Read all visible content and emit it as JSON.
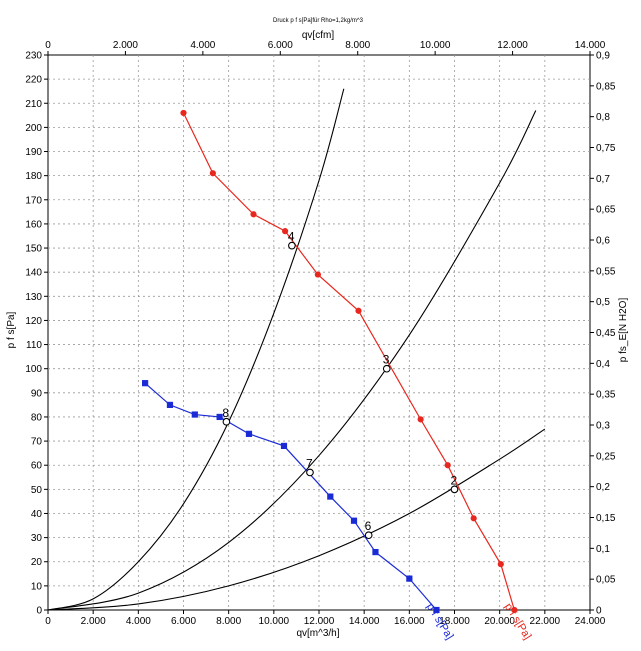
{
  "chart_data": {
    "type": "line",
    "title": "Druck p f s[Pa]für Rho=1,2kg/m^3",
    "xlabel": "qv[m^3/h]",
    "x2label": "qv[cfm]",
    "ylabel": "p f s[Pa]",
    "y2label": "p fs_E[N H2O]",
    "xlim": [
      0,
      24000
    ],
    "x2lim": [
      0,
      14000
    ],
    "ylim": [
      0,
      230
    ],
    "y2lim": [
      0,
      0.9
    ],
    "xticks": [
      "0",
      "2.000",
      "4.000",
      "6.000",
      "8.000",
      "10.000",
      "12.000",
      "14.000",
      "16.000",
      "18.000",
      "20.000",
      "22.000",
      "24.000"
    ],
    "x2ticks": [
      "0",
      "2.000",
      "4.000",
      "6.000",
      "8.000",
      "10.000",
      "12.000",
      "14.000"
    ],
    "yticks": [
      "0",
      "10",
      "20",
      "30",
      "40",
      "50",
      "60",
      "70",
      "80",
      "90",
      "100",
      "110",
      "120",
      "130",
      "140",
      "150",
      "160",
      "170",
      "180",
      "190",
      "200",
      "210",
      "220",
      "230"
    ],
    "y2ticks": [
      "0",
      "0,05",
      "0,1",
      "0,15",
      "0,2",
      "0,25",
      "0,3",
      "0,35",
      "0,4",
      "0,45",
      "0,5",
      "0,55",
      "0,6",
      "0,65",
      "0,7",
      "0,75",
      "0,8",
      "0,85",
      "0,9"
    ],
    "grid": true,
    "series": [
      {
        "name": "p f s[Pa]",
        "color": "#e8281e",
        "marker": "circle",
        "x": [
          6000,
          7300,
          9100,
          10500,
          11950,
          13750,
          16500,
          17700,
          18850,
          20050,
          20650
        ],
        "y": [
          206,
          181,
          164,
          157,
          139,
          124,
          79,
          60,
          38,
          19,
          0
        ]
      },
      {
        "name": "p f s[Pa]",
        "color": "#1a2bd6",
        "marker": "square",
        "x": [
          4300,
          5400,
          6500,
          7600,
          8900,
          10450,
          12500,
          13550,
          14500,
          16000,
          17200
        ],
        "y": [
          94,
          85,
          81,
          80,
          73,
          68,
          47,
          37,
          24,
          13,
          0
        ]
      }
    ],
    "system_curves": [
      {
        "color": "#000000",
        "x": [
          0,
          2000,
          4000,
          6000,
          8000,
          10000,
          12000,
          13100
        ],
        "y": [
          0,
          4.6,
          20,
          44,
          78,
          123,
          178,
          216
        ]
      },
      {
        "color": "#000000",
        "x": [
          0,
          4000,
          8000,
          12000,
          16000,
          20000,
          21600
        ],
        "y": [
          0,
          7,
          28,
          64,
          114,
          177,
          207
        ]
      },
      {
        "color": "#000000",
        "x": [
          0,
          4000,
          8000,
          12000,
          16000,
          20000,
          22000
        ],
        "y": [
          0,
          2.5,
          10,
          22.5,
          40,
          62.5,
          75
        ]
      }
    ],
    "operating_points": [
      {
        "label": "2",
        "x": 18000,
        "y": 50
      },
      {
        "label": "3",
        "x": 15000,
        "y": 100
      },
      {
        "label": "4",
        "x": 10800,
        "y": 151
      },
      {
        "label": "6",
        "x": 14200,
        "y": 31
      },
      {
        "label": "7",
        "x": 11600,
        "y": 57
      },
      {
        "label": "8",
        "x": 7900,
        "y": 78
      }
    ]
  }
}
